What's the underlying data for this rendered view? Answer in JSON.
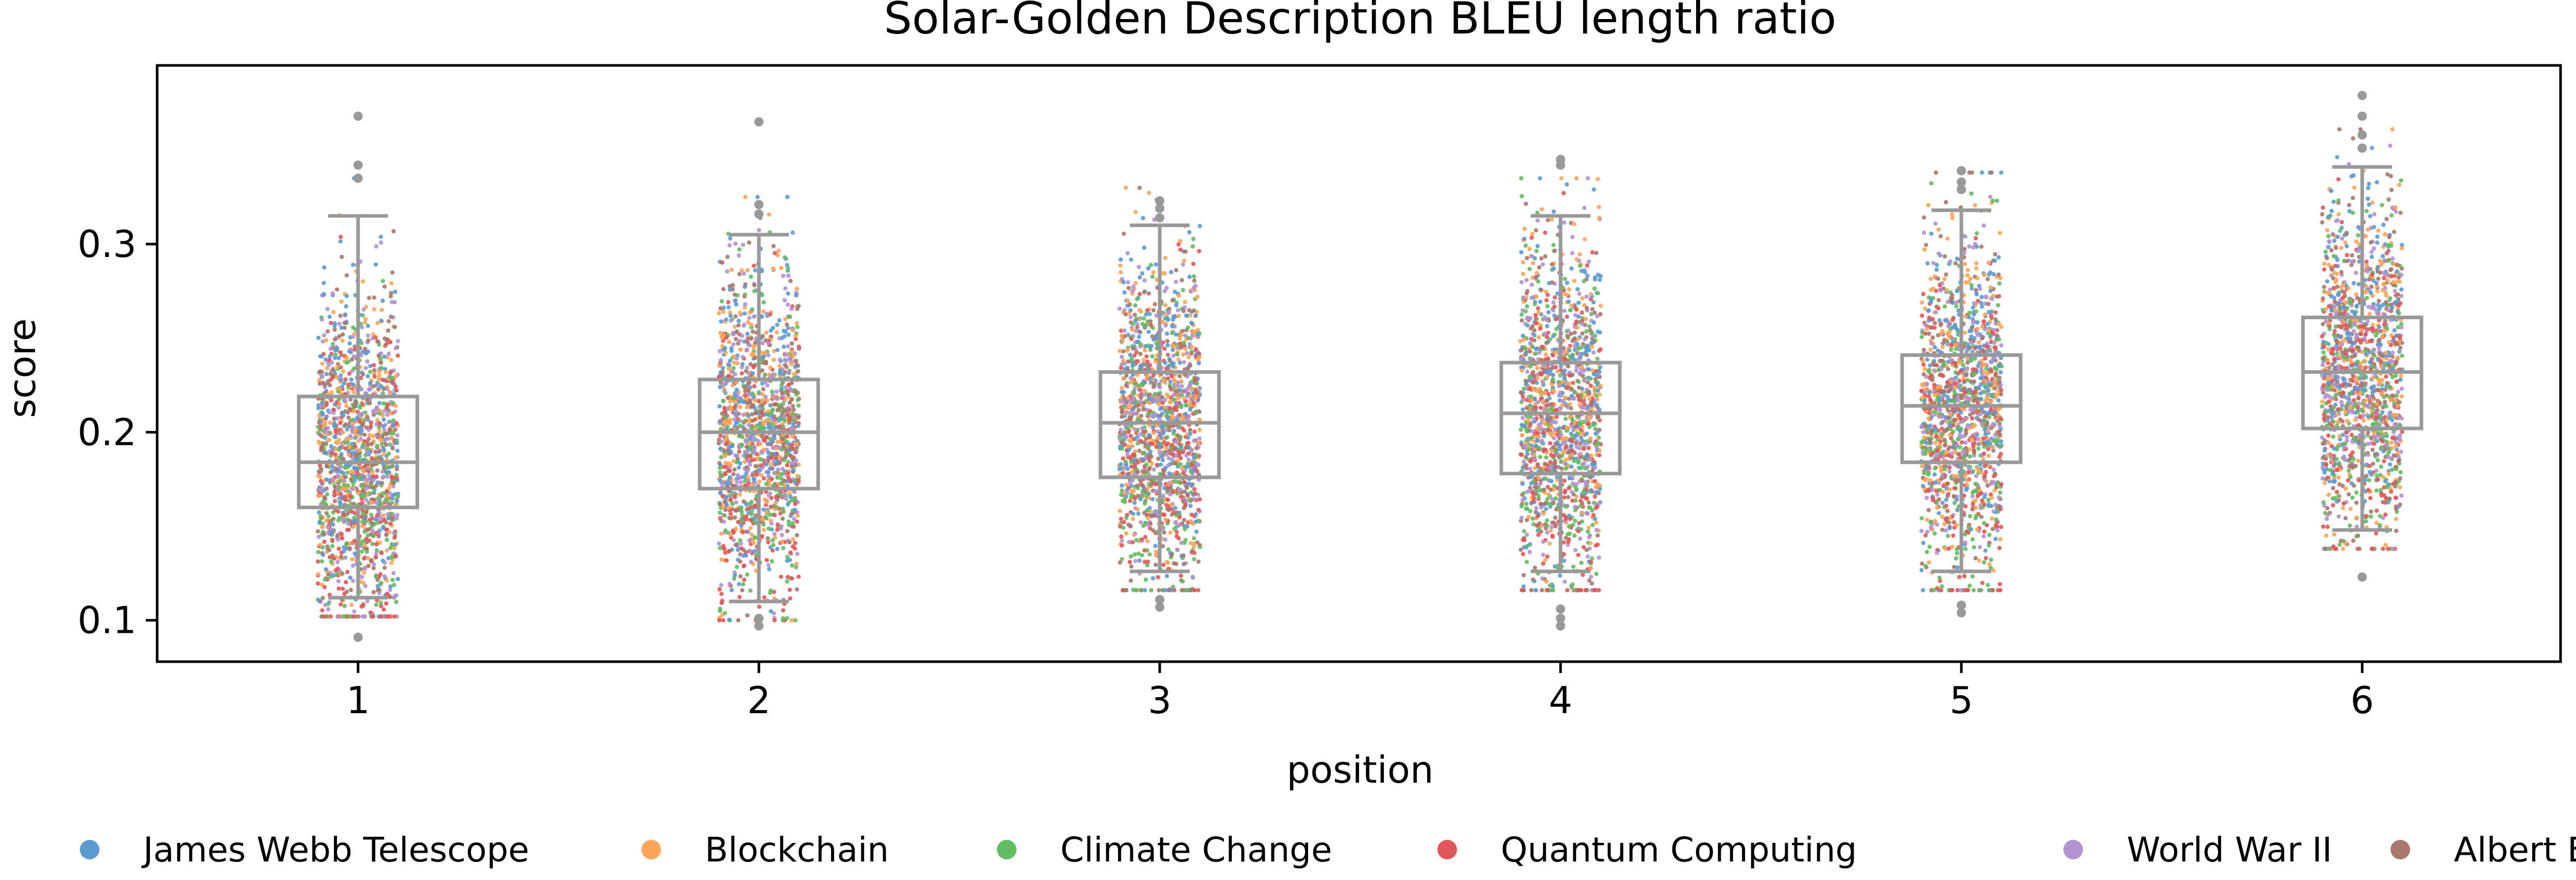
{
  "chart_data": {
    "type": "box+strip",
    "title": "Solar-Golden Description BLEU length ratio",
    "xlabel": "position",
    "ylabel": "score",
    "ylim": [
      0.078,
      0.395
    ],
    "yticks": [
      "0.1",
      "0.2",
      "0.3"
    ],
    "categories": [
      "1",
      "2",
      "3",
      "4",
      "5",
      "6"
    ],
    "boxes": [
      {
        "category": "1",
        "whisker_low": 0.112,
        "q1": 0.16,
        "median": 0.184,
        "q3": 0.219,
        "whisker_high": 0.315
      },
      {
        "category": "2",
        "whisker_low": 0.11,
        "q1": 0.17,
        "median": 0.2,
        "q3": 0.228,
        "whisker_high": 0.305
      },
      {
        "category": "3",
        "whisker_low": 0.126,
        "q1": 0.176,
        "median": 0.205,
        "q3": 0.232,
        "whisker_high": 0.31
      },
      {
        "category": "4",
        "whisker_low": 0.126,
        "q1": 0.178,
        "median": 0.21,
        "q3": 0.237,
        "whisker_high": 0.315
      },
      {
        "category": "5",
        "whisker_low": 0.126,
        "q1": 0.184,
        "median": 0.214,
        "q3": 0.241,
        "whisker_high": 0.318
      },
      {
        "category": "6",
        "whisker_low": 0.148,
        "q1": 0.202,
        "median": 0.232,
        "q3": 0.261,
        "whisker_high": 0.341
      }
    ],
    "outliers": [
      {
        "category": "1",
        "values": [
          0.368,
          0.342,
          0.335,
          0.091
        ]
      },
      {
        "category": "2",
        "values": [
          0.365,
          0.321,
          0.316,
          0.101,
          0.097
        ]
      },
      {
        "category": "3",
        "values": [
          0.323,
          0.319,
          0.314,
          0.107,
          0.111
        ]
      },
      {
        "category": "4",
        "values": [
          0.345,
          0.342,
          0.106,
          0.101,
          0.097
        ]
      },
      {
        "category": "5",
        "values": [
          0.339,
          0.333,
          0.329,
          0.104,
          0.108
        ]
      },
      {
        "category": "6",
        "values": [
          0.379,
          0.368,
          0.358,
          0.351,
          0.123
        ]
      }
    ],
    "series": [
      {
        "name": "James Webb Telescope",
        "color": "#5b9bd0"
      },
      {
        "name": "Blockchain",
        "color": "#ffa55a"
      },
      {
        "name": "Climate Change",
        "color": "#62bd62"
      },
      {
        "name": "Quantum Computing",
        "color": "#e15858"
      },
      {
        "name": "World War II",
        "color": "#b193d0"
      },
      {
        "name": "Albert Einstein",
        "color": "#a8786d"
      }
    ],
    "legend_position": "bottom",
    "grid": false,
    "box_color": "#999999"
  }
}
